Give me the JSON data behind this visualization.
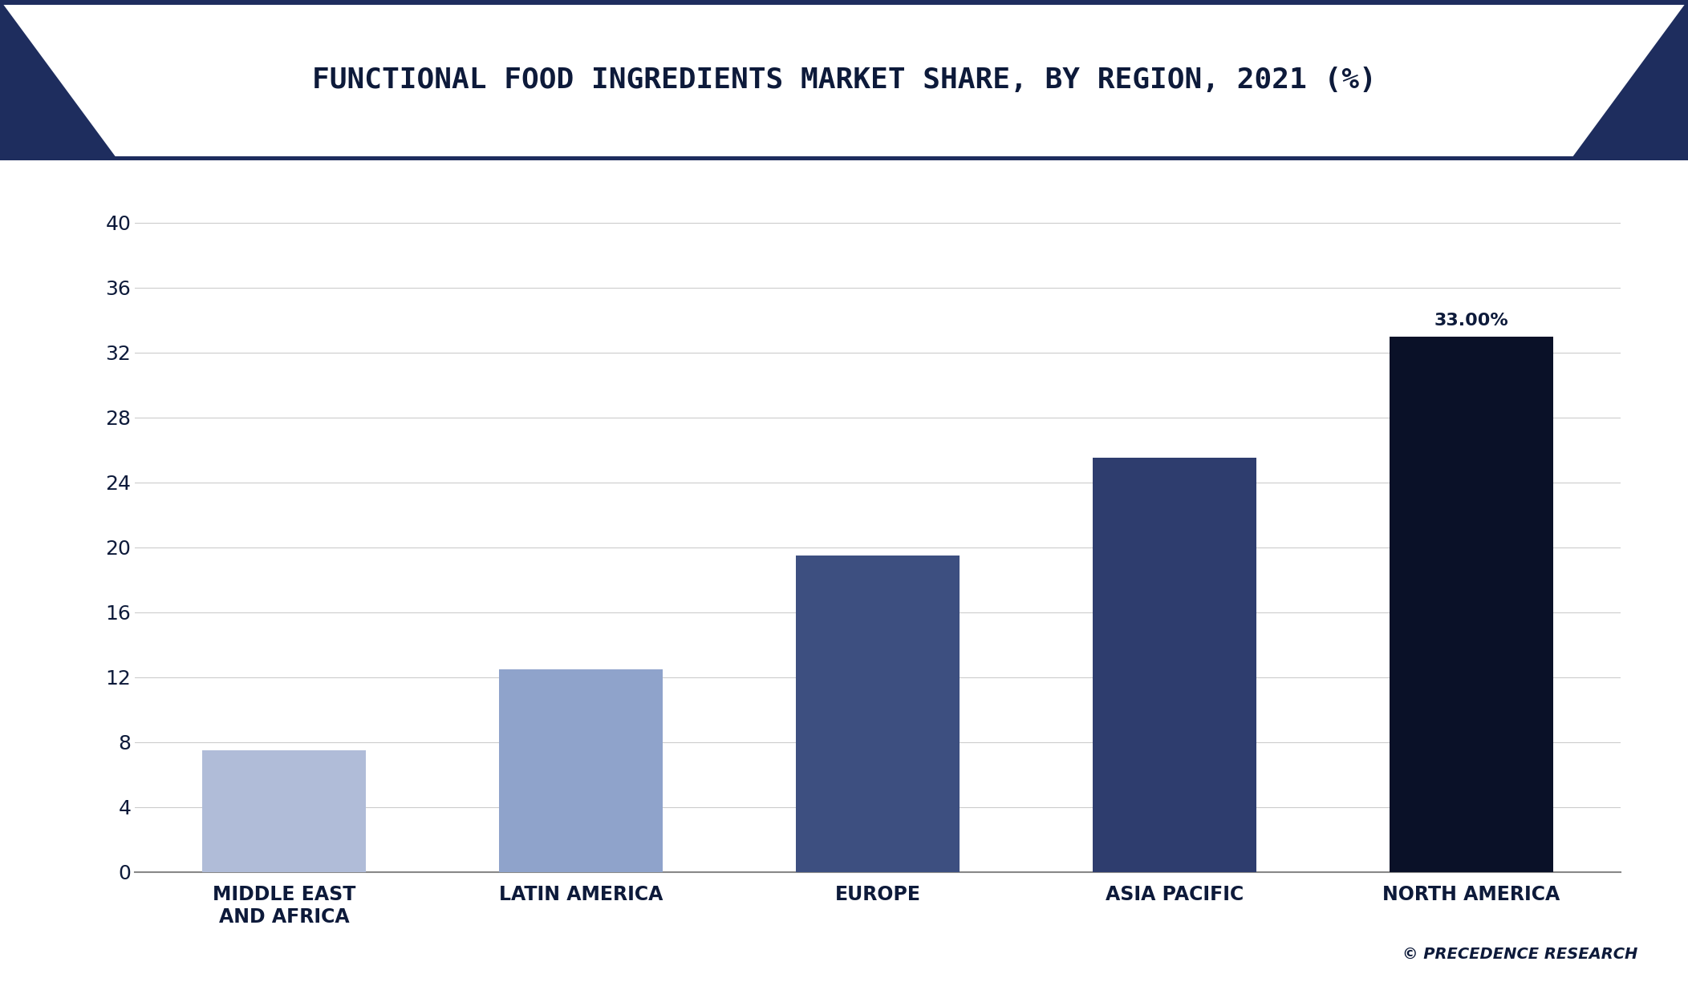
{
  "title": "FUNCTIONAL FOOD INGREDIENTS MARKET SHARE, BY REGION, 2021 (%)",
  "categories": [
    "MIDDLE EAST\nAND AFRICA",
    "LATIN AMERICA",
    "EUROPE",
    "ASIA PACIFIC",
    "NORTH AMERICA"
  ],
  "values": [
    7.5,
    12.5,
    19.5,
    25.5,
    33.0
  ],
  "bar_colors": [
    "#b0bcd8",
    "#8fa3cb",
    "#3d4f80",
    "#2e3d6e",
    "#0a1128"
  ],
  "annotation_bar_index": 4,
  "annotation_text": "33.00%",
  "ylim": [
    0,
    42
  ],
  "yticks": [
    0,
    4,
    8,
    12,
    16,
    20,
    24,
    28,
    32,
    36,
    40
  ],
  "background_color": "#ffffff",
  "plot_bg_color": "#ffffff",
  "title_color": "#0d1a3a",
  "title_fontsize": 26,
  "tick_label_color": "#0d1a3a",
  "grid_color": "#cccccc",
  "annotation_color": "#0d1a3a",
  "annotation_fontsize": 16,
  "watermark": "© PRECEDENCE RESEARCH",
  "watermark_color": "#0d1a3a",
  "corner_color": "#1e2d5e",
  "title_band_color": "#ffffff",
  "title_border_color": "#1e2d5e",
  "bottom_border_color": "#1e2d5e",
  "bar_width": 0.55
}
